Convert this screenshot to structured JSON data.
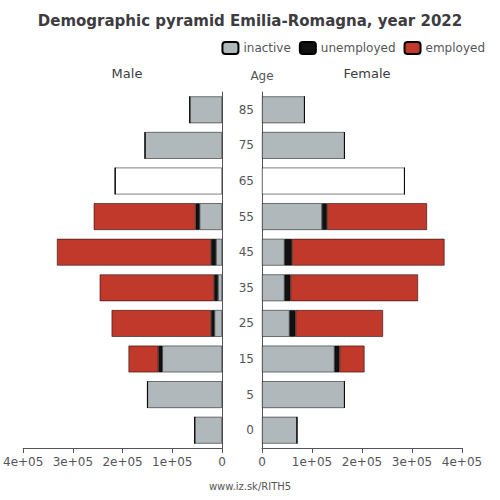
{
  "title": "Demographic pyramid Emilia-Romagna, year 2022",
  "annotations": [
    "www.iz.sk/RITH5"
  ],
  "chart_data": [
    {
      "type": "bar",
      "orientation": "horizontal",
      "stacked": true,
      "grid": false,
      "title": "Male",
      "tick_labels": "x",
      "categories": [
        "0",
        "5",
        "15",
        "25",
        "35",
        "45",
        "55",
        "65",
        "75",
        "85"
      ],
      "xlim": [
        400000,
        0
      ],
      "xticks": [
        {
          "value": 400000,
          "label": "4e+05"
        },
        {
          "value": 300000,
          "label": "3e+05"
        },
        {
          "value": 200000,
          "label": "2e+05"
        },
        {
          "value": 100000,
          "label": "1e+05"
        },
        0
      ],
      "series": [
        {
          "name": "inactive",
          "color": "#b0b8bc",
          "colors": [
            "#b0b8bc",
            "#b0b8bc",
            "#b0b8bc",
            "#b0b8bc",
            "#b0b8bc",
            "#b0b8bc",
            "#b0b8bc",
            "#ffffff",
            "#b0b8bc",
            "#b0b8bc"
          ],
          "values": [
            55000,
            150000,
            120000,
            15000,
            8000,
            12000,
            45000,
            215000,
            155000,
            65000
          ]
        },
        {
          "name": "unemployed",
          "color": "#111111",
          "values": [
            0,
            0,
            8000,
            7000,
            8000,
            10000,
            8000,
            0,
            0,
            0
          ]
        },
        {
          "name": "employed",
          "color": "#c0392b",
          "values": [
            0,
            0,
            60000,
            200000,
            230000,
            310000,
            205000,
            0,
            0,
            0
          ]
        }
      ]
    },
    {
      "type": "bar",
      "orientation": "horizontal",
      "stacked": true,
      "grid": false,
      "title": "Female",
      "ylabel": "Age",
      "legend": "upper right",
      "categories": [
        "0",
        "5",
        "15",
        "25",
        "35",
        "45",
        "55",
        "65",
        "75",
        "85"
      ],
      "xlim": [
        0,
        400000
      ],
      "xticks": [
        0,
        {
          "value": 100000,
          "label": "1e+05"
        },
        {
          "value": 200000,
          "label": "2e+05"
        },
        {
          "value": 300000,
          "label": "3e+05"
        },
        {
          "value": 400000,
          "label": "4e+05"
        }
      ],
      "series": [
        {
          "name": "inactive",
          "color": "#b0b8bc",
          "colors": [
            "#b0b8bc",
            "#b0b8bc",
            "#b0b8bc",
            "#b0b8bc",
            "#b0b8bc",
            "#b0b8bc",
            "#b0b8bc",
            "#ffffff",
            "#b0b8bc",
            "#b0b8bc"
          ],
          "values": [
            70000,
            165000,
            145000,
            55000,
            45000,
            45000,
            120000,
            285000,
            165000,
            85000
          ]
        },
        {
          "name": "unemployed",
          "color": "#111111",
          "values": [
            0,
            0,
            10000,
            12000,
            12000,
            15000,
            10000,
            0,
            0,
            0
          ]
        },
        {
          "name": "employed",
          "color": "#c0392b",
          "values": [
            0,
            0,
            50000,
            175000,
            255000,
            305000,
            200000,
            0,
            0,
            0
          ]
        }
      ]
    }
  ]
}
